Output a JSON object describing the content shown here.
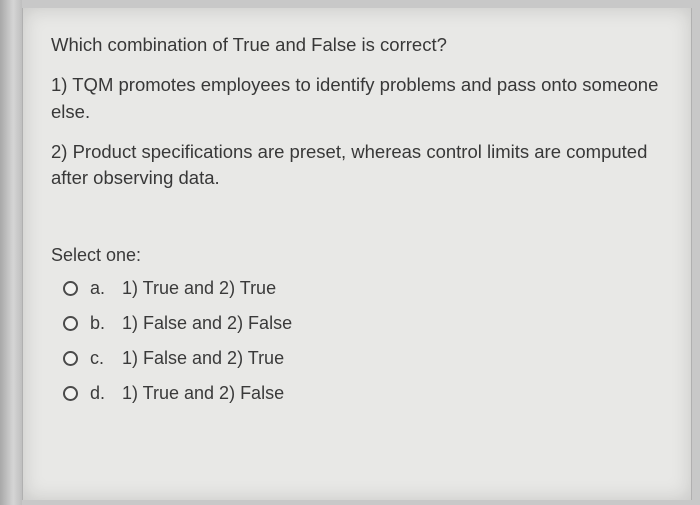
{
  "question": {
    "prompt": "Which combination of True and False is correct?",
    "statement1": "1) TQM promotes employees to identify problems and pass onto someone else.",
    "statement2": "2) Product specifications are preset, whereas control limits are computed after observing data."
  },
  "select_label": "Select one:",
  "options": {
    "a": {
      "letter": "a.",
      "text": "1) True and 2) True"
    },
    "b": {
      "letter": "b.",
      "text": "1) False and 2) False"
    },
    "c": {
      "letter": "c.",
      "text": "1) False and 2) True"
    },
    "d": {
      "letter": "d.",
      "text": "1) True and 2) False"
    }
  },
  "colors": {
    "page_bg": "#e8e8e6",
    "text": "#3a3a3a",
    "outer_bg": "#c8c8c8"
  }
}
